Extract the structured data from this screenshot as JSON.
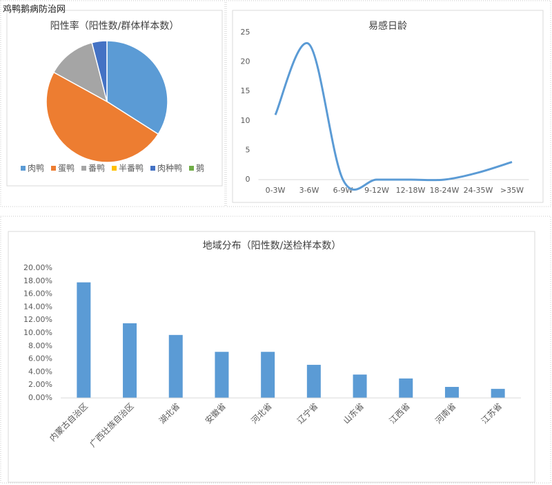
{
  "watermark": "鸡鸭鹅病防治网",
  "chart_data": [
    {
      "type": "pie",
      "title": "阳性率（阳性数/群体样本数）",
      "categories": [
        "肉鸭",
        "蛋鸭",
        "番鸭",
        "半番鸭",
        "肉种鸭",
        "鹅"
      ],
      "values": [
        34,
        49,
        13,
        0,
        4,
        0
      ],
      "colors": [
        "#5b9bd5",
        "#ed7d31",
        "#a5a5a5",
        "#ffc000",
        "#4472c4",
        "#70ad47"
      ],
      "legend": "bottom"
    },
    {
      "type": "line",
      "title": "易感日龄",
      "categories": [
        "0-3W",
        "3-6W",
        "6-9W",
        "9-12W",
        "12-18W",
        "18-24W",
        "24-35W",
        ">35W"
      ],
      "values": [
        11,
        23,
        0,
        0,
        0,
        0,
        1.2,
        3
      ],
      "color": "#5b9bd5",
      "smooth": true,
      "ylim": [
        0,
        25
      ],
      "yticks": [
        0,
        5,
        10,
        15,
        20,
        25
      ]
    },
    {
      "type": "bar",
      "title": "地域分布（阳性数/送检样本数）",
      "categories": [
        "内蒙古自治区",
        "广西壮族自治区",
        "湖北省",
        "安徽省",
        "河北省",
        "辽宁省",
        "山东省",
        "江西省",
        "河南省",
        "江苏省"
      ],
      "values": [
        17.8,
        11.5,
        9.7,
        7.1,
        7.1,
        5.1,
        3.6,
        3.0,
        1.7,
        1.4
      ],
      "color": "#5b9bd5",
      "ylim": [
        0,
        20
      ],
      "yticks": [
        {
          "value": 0,
          "label": "0.00%"
        },
        {
          "value": 2,
          "label": "2.00%"
        },
        {
          "value": 4,
          "label": "4.00%"
        },
        {
          "value": 6,
          "label": "6.00%"
        },
        {
          "value": 8,
          "label": "8.00%"
        },
        {
          "value": 10,
          "label": "10.00%"
        },
        {
          "value": 12,
          "label": "12.00%"
        },
        {
          "value": 14,
          "label": "14.00%"
        },
        {
          "value": 16,
          "label": "16.00%"
        },
        {
          "value": 18,
          "label": "18.00%"
        },
        {
          "value": 20,
          "label": "20.00%"
        }
      ]
    }
  ]
}
